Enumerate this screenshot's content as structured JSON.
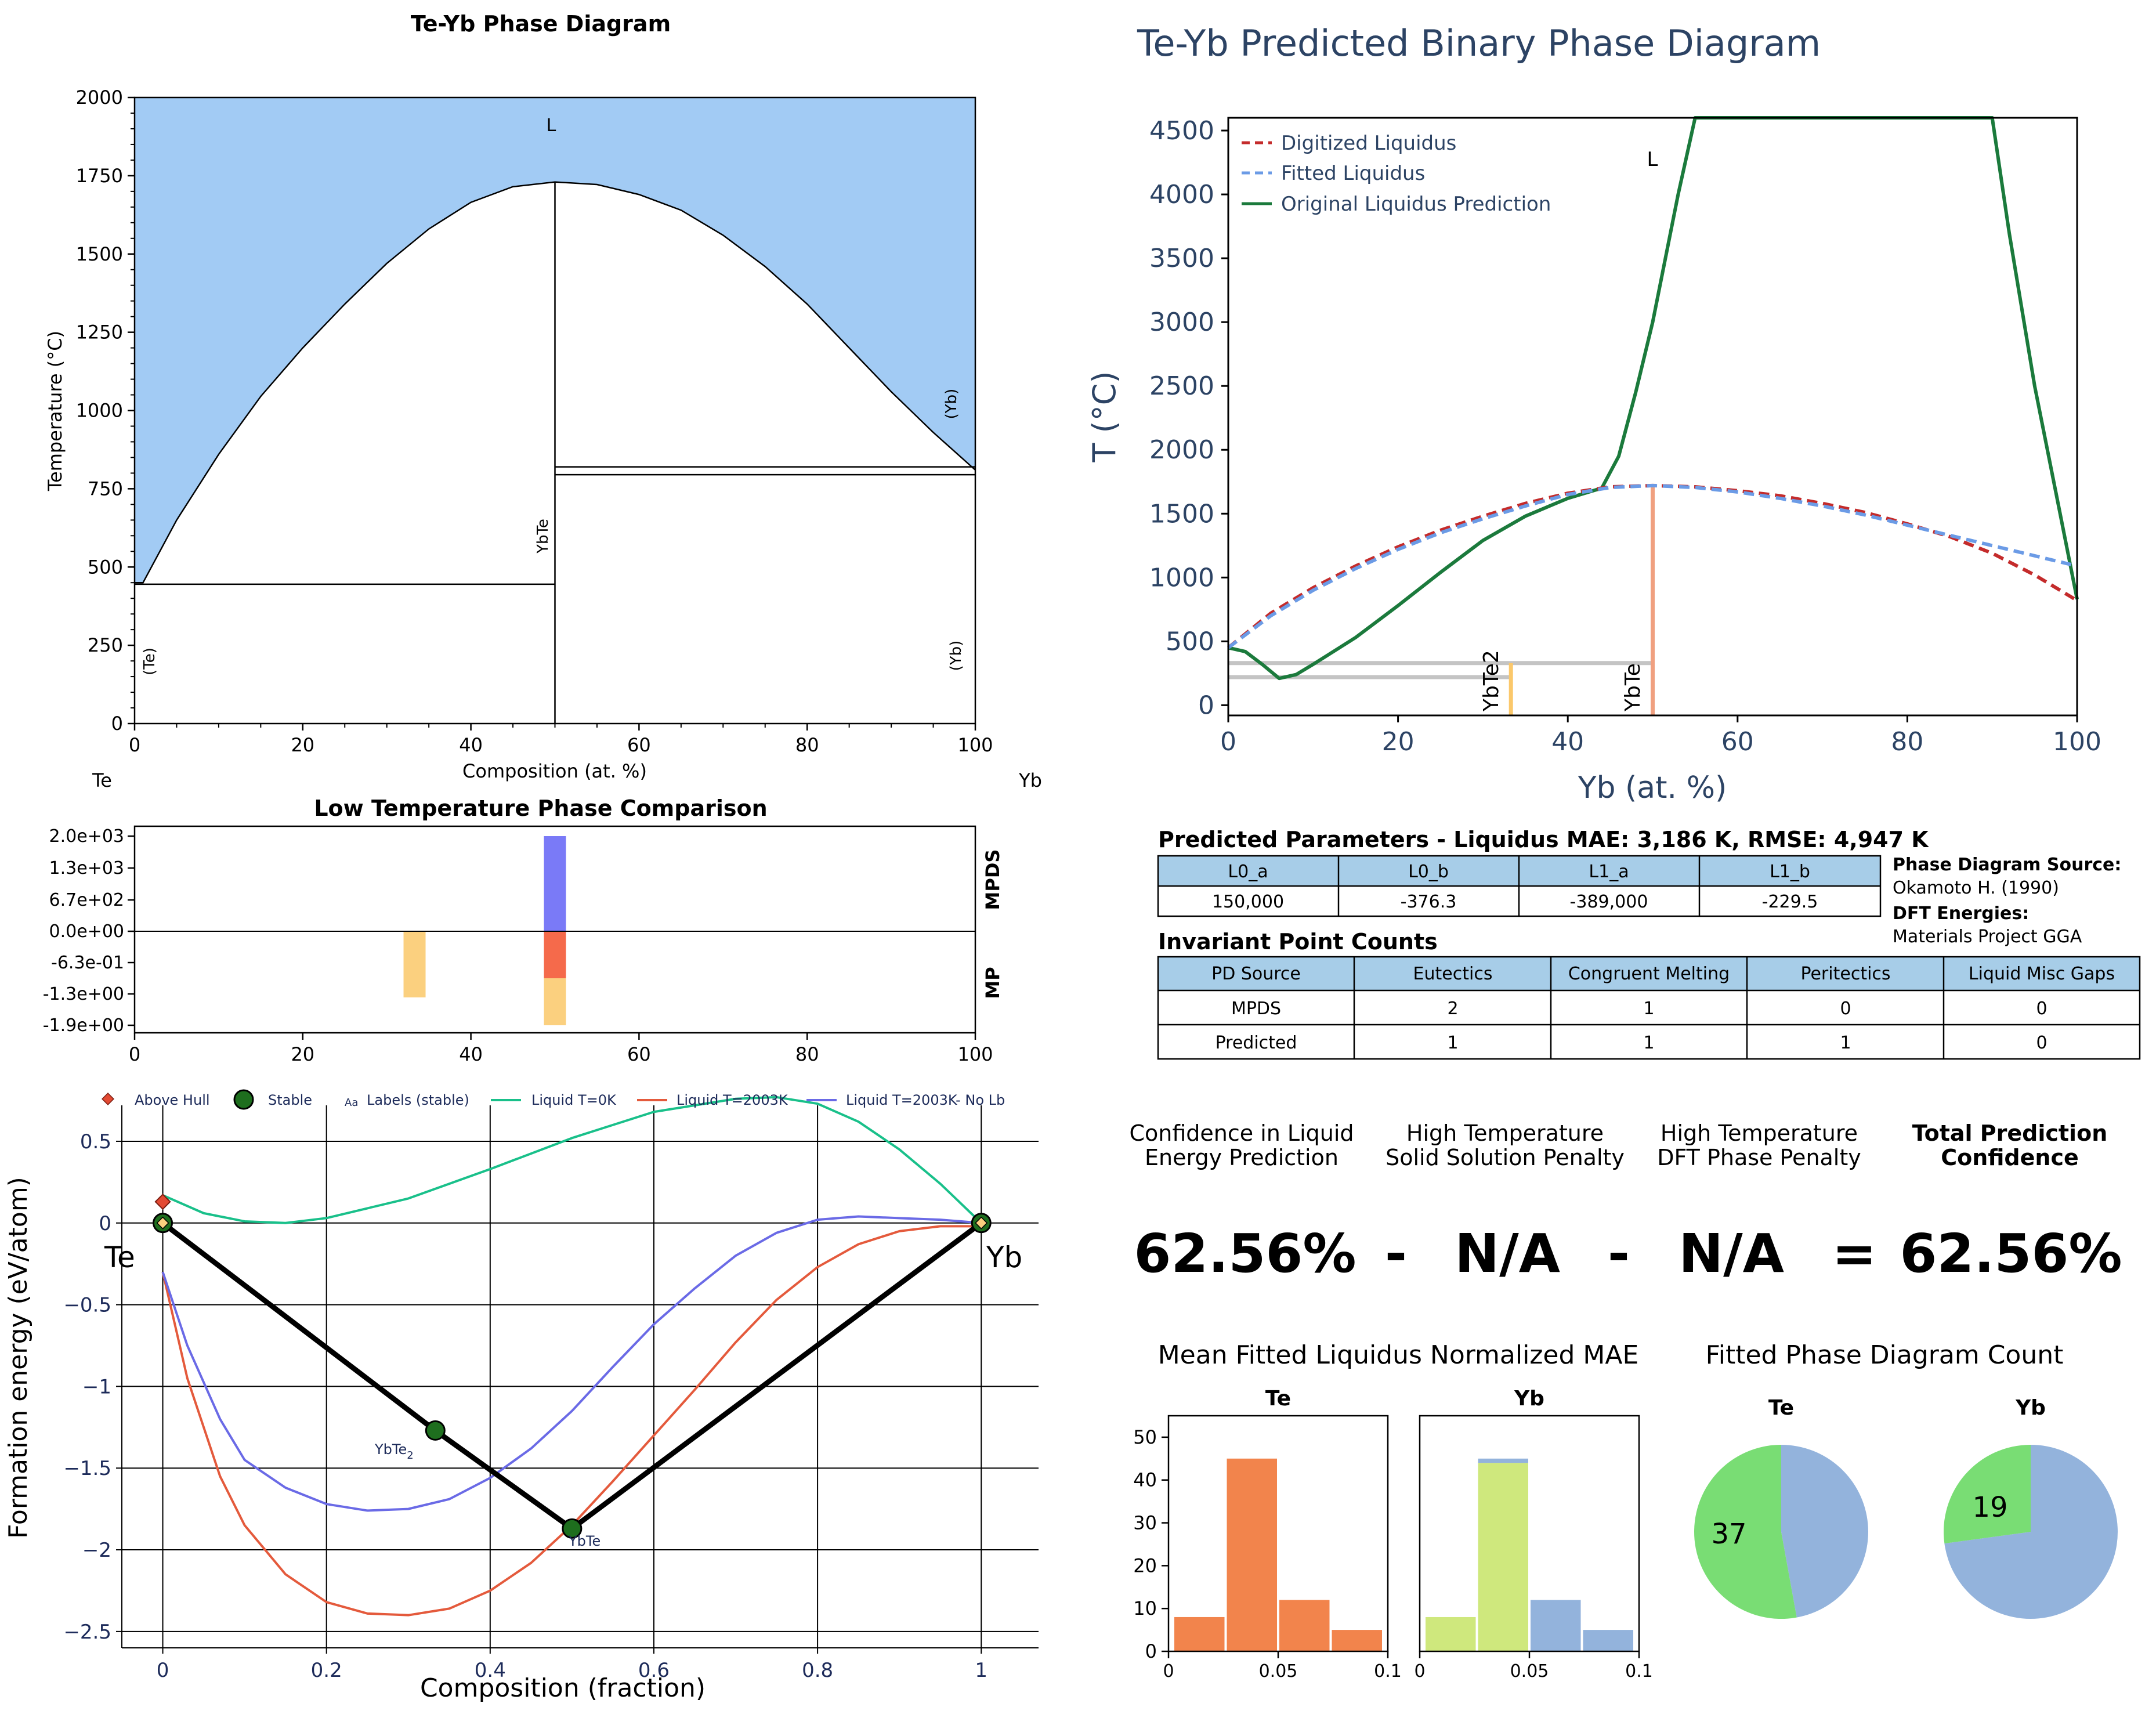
{
  "colors": {
    "liquid_fill": "#a2cbf4",
    "digitized_liquidus": "#c42b2b",
    "fitted_liquidus": "#6b9be6",
    "original_liquidus": "#1b7a3c",
    "title_blue": "#2c4364",
    "table_header": "#a7cde8",
    "mpds_bar": "#7a7af7",
    "mp_bar_red": "#f56a4b",
    "mp_bar_orange": "#fbd07f",
    "hull_line": "#000000",
    "liquid_0k": "#19c08a",
    "liquid_2003k": "#e45a3c",
    "liquid_2003k_nolb": "#6a6ae6",
    "hist_orange": "#f2844c",
    "hist_lime": "#cfe87d",
    "hist_blue": "#93b3dc",
    "pie_green": "#79dd74",
    "pie_blue": "#93b3dc"
  },
  "panel_pd": {
    "title": "Te-Yb Phase Diagram",
    "ylabel": "Temperature (°C)",
    "xlabel": "Composition (at. %)",
    "left_element": "Te",
    "right_element": "Yb",
    "xticks": [
      "0",
      "20",
      "40",
      "60",
      "80",
      "100"
    ],
    "yticks": [
      "0",
      "250",
      "500",
      "750",
      "1000",
      "1250",
      "1500",
      "1750",
      "2000"
    ],
    "labels": {
      "liquid": "L",
      "te_solid": "(Te)",
      "yb_solid_low": "(Yb)",
      "yb_solid_high": "(Yb)",
      "ybte": "YbTe"
    }
  },
  "panel_pred": {
    "title": "Te-Yb Predicted Binary Phase Diagram",
    "ylabel": "T (°C)",
    "xlabel": "Yb (at. %)",
    "xticks": [
      "0",
      "20",
      "40",
      "60",
      "80",
      "100"
    ],
    "yticks": [
      "0",
      "500",
      "1000",
      "1500",
      "2000",
      "2500",
      "3000",
      "3500",
      "4000",
      "4500"
    ],
    "legend": [
      "Digitized Liquidus",
      "Fitted Liquidus",
      "Original Liquidus Prediction"
    ],
    "labels": {
      "liquid": "L",
      "ybte2": "YbTe2",
      "ybte": "YbTe"
    }
  },
  "panel_lowt": {
    "title": "Low Temperature Phase Comparison",
    "yticks": [
      "2.0e+03",
      "1.3e+03",
      "6.7e+02",
      "0.0e+00",
      "-6.3e-01",
      "-1.3e+00",
      "-1.9e+00"
    ],
    "xticks": [
      "0",
      "20",
      "40",
      "60",
      "80",
      "100"
    ],
    "right_top": "MPDS",
    "right_bottom": "MP"
  },
  "panel_hull": {
    "ylabel": "Formation energy (eV/atom)",
    "xlabel": "Composition (fraction)",
    "xticks": [
      "0",
      "0.2",
      "0.4",
      "0.6",
      "0.8",
      "1"
    ],
    "yticks": [
      "0.5",
      "0",
      "−0.5",
      "−1",
      "−1.5",
      "−2",
      "−2.5"
    ],
    "legend": {
      "above_hull": "Above Hull",
      "stable": "Stable",
      "labels_marker": "Aa",
      "labels": "Labels (stable)",
      "liq0": "Liquid T=0K",
      "liq2003": "Liquid T=2003K",
      "liqnolb": "Liquid T=2003K- No Lb"
    },
    "endpoint_left": "Te",
    "endpoint_right": "Yb",
    "ybte2": "YbTe",
    "ybte2_sub": "2",
    "ybte": "YbTe"
  },
  "params": {
    "title": "Predicted Parameters - Liquidus MAE: 3,186 K, RMSE: 4,947 K",
    "headers": [
      "L0_a",
      "L0_b",
      "L1_a",
      "L1_b"
    ],
    "values": [
      "150,000",
      "-376.3",
      "-389,000",
      "-229.5"
    ]
  },
  "sources": {
    "pd_label": "Phase Diagram Source:",
    "pd_value": "Okamoto H. (1990)",
    "dft_label": "DFT Energies:",
    "dft_value": "Materials Project GGA"
  },
  "invariant": {
    "title": "Invariant Point Counts",
    "headers": [
      "PD Source",
      "Eutectics",
      "Congruent Melting",
      "Peritectics",
      "Liquid Misc Gaps"
    ],
    "rows": [
      [
        "MPDS",
        "2",
        "1",
        "0",
        "0"
      ],
      [
        "Predicted",
        "1",
        "1",
        "1",
        "0"
      ]
    ]
  },
  "confidence": {
    "col1": [
      "Confidence in Liquid",
      "Energy Prediction"
    ],
    "col2": [
      "High Temperature",
      "Solid Solution Penalty"
    ],
    "col3": [
      "High Temperature",
      "DFT Phase Penalty"
    ],
    "col4": [
      "Total Prediction",
      "Confidence"
    ],
    "v1": "62.56%",
    "op1": "-",
    "v2": "N/A",
    "op2": "-",
    "v3": "N/A",
    "op3": "=",
    "v4": "62.56%"
  },
  "hist": {
    "title": "Mean Fitted Liquidus Normalized MAE",
    "panels": [
      "Te",
      "Yb"
    ],
    "yticks": [
      "0",
      "10",
      "20",
      "30",
      "40",
      "50"
    ],
    "xticks": [
      "0",
      "0.05",
      "0.1"
    ]
  },
  "pies": {
    "title": "Fitted Phase Diagram Count",
    "panels": [
      "Te",
      "Yb"
    ],
    "te_label": "37",
    "yb_label": "19"
  },
  "chart_data": [
    {
      "type": "area",
      "title": "Te-Yb Phase Diagram",
      "xlabel": "Composition (at. %)",
      "ylabel": "Temperature (°C)",
      "xlim": [
        0,
        100
      ],
      "ylim": [
        0,
        2000
      ],
      "liquidus": [
        [
          0,
          450
        ],
        [
          1,
          450
        ],
        [
          5,
          650
        ],
        [
          10,
          860
        ],
        [
          15,
          1045
        ],
        [
          20,
          1200
        ],
        [
          25,
          1340
        ],
        [
          30,
          1470
        ],
        [
          35,
          1580
        ],
        [
          40,
          1665
        ],
        [
          45,
          1715
        ],
        [
          50,
          1730
        ],
        [
          55,
          1722
        ],
        [
          60,
          1690
        ],
        [
          65,
          1640
        ],
        [
          70,
          1560
        ],
        [
          75,
          1460
        ],
        [
          80,
          1340
        ],
        [
          85,
          1200
        ],
        [
          90,
          1060
        ],
        [
          95,
          930
        ],
        [
          100,
          810
        ]
      ],
      "invariant_lines": [
        {
          "T": 445,
          "x": [
            0,
            50
          ]
        },
        {
          "T": 820,
          "x": [
            50,
            100
          ]
        },
        {
          "T": 795,
          "x": [
            50,
            100
          ]
        }
      ],
      "compounds": [
        {
          "name": "YbTe",
          "x": 50
        }
      ]
    },
    {
      "type": "line",
      "title": "Te-Yb Predicted Binary Phase Diagram",
      "xlabel": "Yb (at. %)",
      "ylabel": "T (°C)",
      "xlim": [
        0,
        100
      ],
      "ylim": [
        -80,
        4600
      ],
      "series": [
        {
          "name": "Digitized Liquidus",
          "x": [
            0,
            5,
            10,
            15,
            20,
            25,
            30,
            35,
            40,
            45,
            50,
            55,
            60,
            65,
            70,
            75,
            80,
            85,
            90,
            95,
            100
          ],
          "y": [
            450,
            720,
            920,
            1090,
            1240,
            1370,
            1480,
            1580,
            1660,
            1710,
            1720,
            1710,
            1680,
            1640,
            1580,
            1510,
            1420,
            1320,
            1190,
            1020,
            820
          ]
        },
        {
          "name": "Fitted Liquidus",
          "x": [
            0,
            5,
            10,
            15,
            20,
            25,
            30,
            35,
            40,
            45,
            50,
            55,
            60,
            65,
            70,
            75,
            80,
            85,
            90,
            95,
            100
          ],
          "y": [
            450,
            700,
            900,
            1070,
            1220,
            1350,
            1460,
            1560,
            1650,
            1705,
            1720,
            1705,
            1670,
            1620,
            1560,
            1490,
            1410,
            1330,
            1250,
            1170,
            1090
          ]
        },
        {
          "name": "Original Liquidus Prediction",
          "x": [
            0,
            2,
            4,
            6,
            8,
            10,
            15,
            20,
            25,
            30,
            35,
            40,
            44,
            46,
            48,
            50,
            53,
            55,
            90,
            92,
            95,
            98,
            100
          ],
          "y": [
            450,
            420,
            320,
            210,
            240,
            320,
            530,
            780,
            1040,
            1290,
            1480,
            1620,
            1700,
            1950,
            2450,
            3000,
            4000,
            4600,
            4600,
            3700,
            2500,
            1500,
            830
          ]
        }
      ],
      "invariant_lines": [
        {
          "T": 330,
          "x": [
            0,
            50
          ]
        },
        {
          "T": 220,
          "x": [
            0,
            33.3
          ]
        }
      ],
      "compounds": [
        {
          "name": "YbTe2",
          "x": 33.3
        },
        {
          "name": "YbTe",
          "x": 50,
          "T": 1720
        }
      ]
    },
    {
      "type": "bar",
      "title": "Low Temperature Phase Comparison",
      "xlim": [
        0,
        100
      ],
      "series": [
        {
          "name": "MPDS",
          "x": [
            50
          ],
          "values": [
            2000
          ]
        },
        {
          "name": "MP",
          "x": [
            33.3,
            50,
            50
          ],
          "values": [
            -1.33,
            -0.9,
            -1.9
          ]
        }
      ]
    },
    {
      "type": "line",
      "xlabel": "Composition (fraction)",
      "ylabel": "Formation energy (eV/atom)",
      "xlim": [
        -0.05,
        1.07
      ],
      "ylim": [
        -2.6,
        0.72
      ],
      "series": [
        {
          "name": "Liquid T=0K",
          "x": [
            0,
            0.05,
            0.1,
            0.15,
            0.2,
            0.3,
            0.4,
            0.5,
            0.6,
            0.7,
            0.75,
            0.8,
            0.85,
            0.9,
            0.95,
            1
          ],
          "y": [
            0.17,
            0.06,
            0.01,
            0.0,
            0.03,
            0.15,
            0.33,
            0.52,
            0.68,
            0.76,
            0.77,
            0.73,
            0.62,
            0.45,
            0.24,
            0.0
          ]
        },
        {
          "name": "Liquid T=2003K",
          "x": [
            0,
            0.03,
            0.07,
            0.1,
            0.15,
            0.2,
            0.25,
            0.3,
            0.35,
            0.4,
            0.45,
            0.5,
            0.55,
            0.6,
            0.65,
            0.7,
            0.75,
            0.8,
            0.85,
            0.9,
            0.95,
            1
          ],
          "y": [
            -0.3,
            -0.95,
            -1.55,
            -1.85,
            -2.15,
            -2.32,
            -2.39,
            -2.4,
            -2.36,
            -2.25,
            -2.08,
            -1.85,
            -1.58,
            -1.3,
            -1.02,
            -0.73,
            -0.47,
            -0.27,
            -0.13,
            -0.05,
            -0.02,
            -0.02
          ]
        },
        {
          "name": "Liquid T=2003K- No Lb",
          "x": [
            0,
            0.03,
            0.07,
            0.1,
            0.15,
            0.2,
            0.25,
            0.3,
            0.35,
            0.4,
            0.45,
            0.5,
            0.55,
            0.6,
            0.65,
            0.7,
            0.75,
            0.8,
            0.85,
            0.9,
            0.95,
            1
          ],
          "y": [
            -0.3,
            -0.75,
            -1.2,
            -1.45,
            -1.62,
            -1.72,
            -1.76,
            -1.75,
            -1.69,
            -1.56,
            -1.38,
            -1.15,
            -0.88,
            -0.62,
            -0.4,
            -0.2,
            -0.06,
            0.02,
            0.04,
            0.03,
            0.02,
            0.0
          ]
        },
        {
          "name": "Hull",
          "x": [
            0,
            0.333,
            0.5,
            1
          ],
          "y": [
            0,
            -1.27,
            -1.87,
            0
          ]
        }
      ],
      "stable": [
        {
          "x": 0,
          "y": 0,
          "label": "Te"
        },
        {
          "x": 0.333,
          "y": -1.27,
          "label": "YbTe2"
        },
        {
          "x": 0.5,
          "y": -1.87,
          "label": "YbTe"
        },
        {
          "x": 1,
          "y": 0,
          "label": "Yb"
        }
      ],
      "above_hull": [
        {
          "x": 0,
          "y": 0.13
        }
      ]
    },
    {
      "type": "bar",
      "title": "Mean Fitted Liquidus Normalized MAE",
      "panels": [
        {
          "name": "Te",
          "bins": [
            0,
            0.025,
            0.05,
            0.075,
            0.1
          ],
          "series": [
            {
              "name": "orange",
              "values": [
                8,
                45,
                12,
                5
              ]
            }
          ]
        },
        {
          "name": "Yb",
          "bins": [
            0,
            0.025,
            0.05,
            0.075,
            0.1
          ],
          "series": [
            {
              "name": "lime",
              "values": [
                8,
                44,
                0,
                0
              ]
            },
            {
              "name": "blue",
              "values": [
                0,
                1,
                12,
                5
              ]
            }
          ]
        }
      ],
      "ylim": [
        0,
        55
      ]
    },
    {
      "type": "pie",
      "title": "Fitted Phase Diagram Count",
      "pies": [
        {
          "name": "Te",
          "values": [
            37,
            33
          ]
        },
        {
          "name": "Yb",
          "values": [
            19,
            51
          ]
        }
      ]
    }
  ]
}
